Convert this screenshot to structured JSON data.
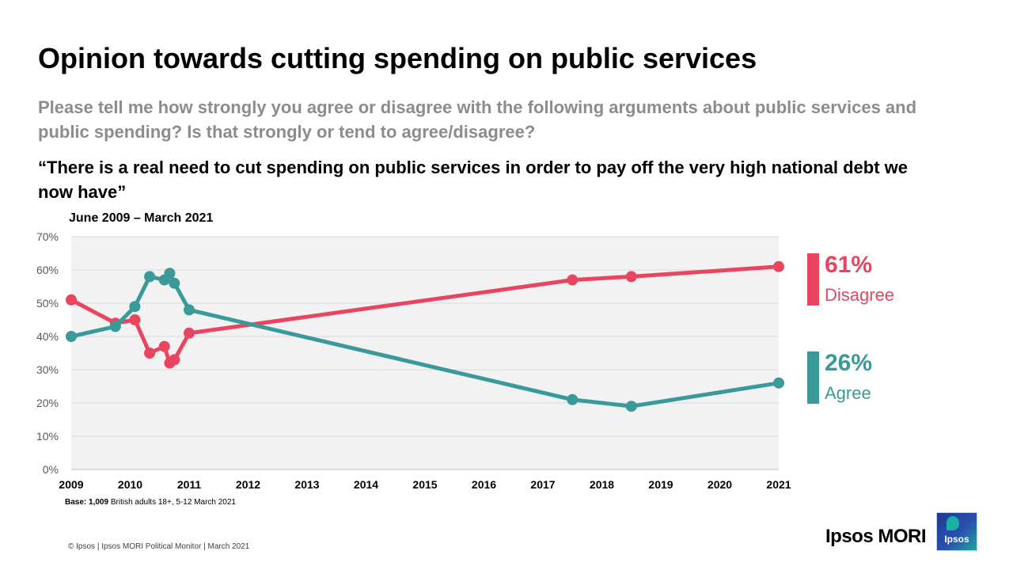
{
  "title": "Opinion towards cutting spending on public services",
  "question": "Please tell me how strongly you agree or disagree with the following arguments about public services and public spending? Is that strongly or tend to agree/disagree?",
  "statement": "“There is a real need to cut spending on public services in order to pay off the very high national debt we now have”",
  "period": "June 2009 – March 2021",
  "base": {
    "label": "Base:",
    "number": "1,009",
    "rest": "British adults 18+, 5-12 March 2021"
  },
  "footer": "© Ipsos | Ipsos MORI Political Monitor | March 2021",
  "brand": "Ipsos MORI",
  "logo_word": "Ipsos",
  "callouts": {
    "disagree": {
      "value": "61%",
      "label": "Disagree",
      "color": "#e94560"
    },
    "agree": {
      "value": "26%",
      "label": "Agree",
      "color": "#3a9a99"
    }
  },
  "chart_data": {
    "type": "line",
    "title": "Opinion towards cutting spending on public services",
    "xlabel": "",
    "ylabel": "",
    "xlim": [
      2009,
      2021
    ],
    "ylim": [
      0,
      70
    ],
    "x_ticks": [
      "2009",
      "2010",
      "2011",
      "2012",
      "2013",
      "2014",
      "2015",
      "2016",
      "2017",
      "2018",
      "2019",
      "2020",
      "2021"
    ],
    "y_ticks": [
      "0%",
      "10%",
      "20%",
      "30%",
      "40%",
      "50%",
      "60%",
      "70%"
    ],
    "grid": true,
    "series": [
      {
        "name": "Disagree",
        "color": "#e94560",
        "x": [
          2009.0,
          2009.75,
          2010.08,
          2010.33,
          2010.58,
          2010.67,
          2010.75,
          2011.0,
          2017.5,
          2018.5,
          2021.0
        ],
        "values": [
          51,
          44,
          45,
          35,
          37,
          32,
          33,
          41,
          57,
          58,
          61
        ]
      },
      {
        "name": "Agree",
        "color": "#3a9a99",
        "x": [
          2009.0,
          2009.75,
          2010.08,
          2010.33,
          2010.58,
          2010.67,
          2010.75,
          2011.0,
          2017.5,
          2018.5,
          2021.0
        ],
        "values": [
          40,
          43,
          49,
          58,
          57,
          59,
          56,
          48,
          21,
          19,
          26
        ]
      }
    ]
  }
}
